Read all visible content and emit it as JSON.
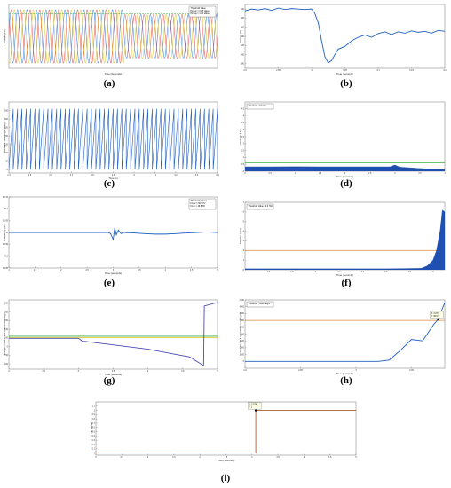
{
  "figure": {
    "background": "#ffffff"
  },
  "panels": [
    {
      "id": "a",
      "caption": "(a)",
      "box": "empty",
      "chart_data": {
        "type": "line",
        "xlabel": "Time (Seconds)",
        "ylabel": "Voltage (p.u.)",
        "x_ticks": [],
        "y_ticks": [],
        "legend": {
          "placement": "top-right",
          "lines": [
            "Threshold Value",
            "Pickup = 0.85 Value",
            "Pickup = 1.00 Value"
          ]
        },
        "series": [
          {
            "color": "#e8453c",
            "waveform": "sine",
            "phase_deg": 0
          },
          {
            "color": "#2f7bd9",
            "waveform": "sine",
            "phase_deg": 120
          },
          {
            "color": "#e0c020",
            "waveform": "sine",
            "phase_deg": 240
          }
        ],
        "reference_lines": [
          {
            "y": 0.85,
            "color": "#3cb040"
          }
        ]
      }
    },
    {
      "id": "b",
      "caption": "(b)",
      "box": "full",
      "chart_data": {
        "type": "line",
        "xlabel": "Time (seconds)",
        "ylabel": "Voltage (V)",
        "xlim": [
          2.9,
          3.2
        ],
        "ylim": [
          270,
          410
        ],
        "x_ticks": [
          "2.9",
          "2.95",
          "3",
          "3.05",
          "3.1",
          "3.15",
          "3.2"
        ],
        "y_ticks": [
          "280",
          "300",
          "320",
          "340",
          "360",
          "380",
          "400"
        ],
        "series": [
          {
            "color": "#1f5fbf",
            "x": [
              2.9,
              2.91,
              2.92,
              2.93,
              2.94,
              2.95,
              2.96,
              2.97,
              2.98,
              2.99,
              3.0,
              3.005,
              3.01,
              3.015,
              3.02,
              3.025,
              3.03,
              3.035,
              3.04,
              3.05,
              3.06,
              3.07,
              3.08,
              3.09,
              3.1,
              3.11,
              3.12,
              3.13,
              3.14,
              3.15,
              3.16,
              3.17,
              3.18,
              3.19,
              3.2
            ],
            "y": [
              396,
              400,
              398,
              401,
              397,
              402,
              399,
              401,
              400,
              399,
              400,
              390,
              370,
              330,
              295,
              282,
              287,
              300,
              312,
              318,
              330,
              338,
              343,
              338,
              346,
              350,
              344,
              350,
              347,
              352,
              349,
              351,
              347,
              353,
              351
            ]
          }
        ]
      }
    },
    {
      "id": "c",
      "caption": "(c)",
      "box": "full",
      "chart_data": {
        "type": "line",
        "xlabel": "Time (s)",
        "ylabel": "Voltage Phase Angle (Deg)",
        "xlim": [
          2.4,
          3.4
        ],
        "ylim": [
          -20,
          400
        ],
        "x_ticks": [
          "2.4",
          "2.5",
          "2.6",
          "2.7",
          "2.8",
          "2.9",
          "3",
          "3.1",
          "3.2",
          "3.3",
          "3.4"
        ],
        "y_ticks": [
          "0",
          "50",
          "100",
          "150",
          "200",
          "250",
          "300",
          "350"
        ],
        "series": [
          {
            "color": "#1f5fbf",
            "waveform": "sawtooth",
            "cycles": 48,
            "min": 0,
            "max": 360
          }
        ]
      }
    },
    {
      "id": "d",
      "caption": "(d)",
      "box": "full",
      "chart_data": {
        "type": "area",
        "xlabel": "Time (seconds)",
        "ylabel": "ROCOV (V/s)",
        "xlim": [
          0,
          4
        ],
        "ylim": [
          0,
          5
        ],
        "x_ticks": [
          "0",
          "0.5",
          "1",
          "1.5",
          "2",
          "2.5",
          "3",
          "3.5",
          "4"
        ],
        "y_ticks": [
          "0",
          "0.5",
          "1",
          "1.5",
          "2",
          "2.5",
          "3",
          "3.5",
          "4",
          "4.5"
        ],
        "legend": {
          "placement": "top-left",
          "lines": [
            "Threshold : 0.6 V/s"
          ]
        },
        "series": [
          {
            "color": "#1f4fb0",
            "x": [
              0,
              0.5,
              1,
              1.5,
              2,
              2.5,
              2.9,
              3.0,
              3.1,
              3.5,
              4
            ],
            "y": [
              0.32,
              0.32,
              0.33,
              0.32,
              0.32,
              0.32,
              0.32,
              0.45,
              0.3,
              0.2,
              0.12
            ]
          }
        ],
        "reference_lines": [
          {
            "y": 0.6,
            "color": "#3cb040"
          }
        ]
      }
    },
    {
      "id": "e",
      "caption": "(e)",
      "box": "full",
      "chart_data": {
        "type": "line",
        "xlabel": "Time (seconds)",
        "ylabel": "Frequency (Hz)",
        "xlim": [
          1,
          5
        ],
        "ylim": [
          49.85,
          50.15
        ],
        "x_ticks": [
          "1",
          "1.5",
          "2",
          "2.5",
          "3",
          "3.5",
          "4",
          "4.5",
          "5"
        ],
        "y_ticks": [
          "49.85",
          "49.9",
          "49.95",
          "50",
          "50.05",
          "50.1",
          "50.15"
        ],
        "legend": {
          "placement": "top-right",
          "lines": [
            "Threshold Values",
            "Fmax = 50.5 Hz",
            "Fmin = 49.5 Hz"
          ]
        },
        "series": [
          {
            "color": "#1f5fbf",
            "x": [
              1,
              2.9,
              2.95,
              3.0,
              3.03,
              3.06,
              3.1,
              3.15,
              3.2,
              3.4,
              3.6,
              3.8,
              4.0,
              4.2,
              4.4,
              4.6,
              4.8,
              5.0
            ],
            "y": [
              50,
              50,
              49.995,
              49.97,
              50.02,
              49.99,
              50.01,
              49.995,
              50,
              49.998,
              49.995,
              49.993,
              49.993,
              49.995,
              49.998,
              50,
              50.002,
              50
            ]
          }
        ]
      }
    },
    {
      "id": "f",
      "caption": "(f)",
      "box": "full",
      "chart_data": {
        "type": "area",
        "xlabel": "Time (seconds)",
        "ylabel": "ROCOF (Hz/s)",
        "xlim": [
          1.4,
          3.1
        ],
        "ylim": [
          0,
          7
        ],
        "x_ticks": [
          "1.6",
          "1.8",
          "2",
          "2.2",
          "2.4",
          "2.6",
          "2.8",
          "3"
        ],
        "y_ticks": [
          "0",
          "1",
          "2",
          "3",
          "4",
          "5",
          "6",
          "7"
        ],
        "legend": {
          "placement": "top-left",
          "lines": [
            "Threshold Value : 2.0 Hz/s"
          ]
        },
        "series": [
          {
            "color": "#1f4fb0",
            "x": [
              1.4,
              2.0,
              2.6,
              2.9,
              2.95,
              3.0,
              3.03,
              3.06,
              3.08,
              3.1
            ],
            "y": [
              0.1,
              0.1,
              0.1,
              0.15,
              0.4,
              1.0,
              2.0,
              4.0,
              6.2,
              6.0
            ]
          }
        ],
        "reference_lines": [
          {
            "y": 2.0,
            "color": "#d9893a"
          }
        ]
      }
    },
    {
      "id": "g",
      "caption": "(g)",
      "box": "full",
      "chart_data": {
        "type": "line",
        "xlabel": "Time (seconds)",
        "ylabel": "Voltage Phase Angle Difference (Deg)",
        "xlim": [
          2,
          5
        ],
        "ylim": [
          -130,
          270
        ],
        "x_ticks": [
          "2",
          "2.5",
          "3",
          "3.5",
          "4",
          "4.5",
          "5"
        ],
        "y_ticks": [
          "-100",
          "-50",
          "0",
          "50",
          "100",
          "150",
          "200",
          "250"
        ],
        "series": [
          {
            "color": "#4a4ab8",
            "x": [
              2,
              3.0,
              3.03,
              3.06,
              3.1,
              3.5,
              4.0,
              4.4,
              4.6,
              4.8,
              4.81,
              5.0
            ],
            "y": [
              48,
              48,
              40,
              30,
              30,
              10,
              -15,
              -45,
              -60,
              -110,
              235,
              255
            ]
          }
        ],
        "reference_lines": [
          {
            "y": 60,
            "color": "#3cb040"
          },
          {
            "y": 52,
            "color": "#e0c020"
          }
        ]
      }
    },
    {
      "id": "h",
      "caption": "(h)",
      "box": "full",
      "chart_data": {
        "type": "line",
        "xlabel": "Time (seconds)",
        "ylabel": "Rate of Phase Angle Difference (deg/s)",
        "xlim": [
          2.9,
          3.08
        ],
        "ylim": [
          -500,
          4500
        ],
        "x_ticks": [
          "2.9",
          "2.95",
          "3",
          "3.05"
        ],
        "y_ticks": [
          "0",
          "500",
          "1000",
          "1500",
          "2000",
          "2500",
          "3000",
          "3500",
          "4000",
          "4500"
        ],
        "legend": {
          "placement": "top-left",
          "lines": [
            "Threshold : 3000 deg/s"
          ]
        },
        "annotations": [
          "X: 3.074",
          "Y: 3072"
        ],
        "series": [
          {
            "color": "#1f5fbf",
            "x": [
              2.9,
              3.0,
              3.01,
              3.02,
              3.03,
              3.04,
              3.05,
              3.06,
              3.07,
              3.074,
              3.08
            ],
            "y": [
              0,
              0,
              0,
              0,
              100,
              800,
              1600,
              1500,
              2700,
              3072,
              4300
            ]
          }
        ],
        "reference_lines": [
          {
            "y": 3000,
            "color": "#d9893a"
          }
        ]
      }
    },
    {
      "id": "i",
      "caption": "(i)",
      "box": "full",
      "chart_data": {
        "type": "line",
        "xlabel": "Time (Seconds)",
        "ylabel": "Trip Signal",
        "xlim": [
          0,
          5
        ],
        "ylim": [
          -0.05,
          1.2
        ],
        "x_ticks": [
          "0",
          "0.5",
          "1",
          "1.5",
          "2",
          "2.5",
          "3",
          "3.5",
          "4",
          "4.5",
          "5"
        ],
        "y_ticks": [
          "0",
          "0.1",
          "0.2",
          "0.3",
          "0.4",
          "0.5",
          "0.6",
          "0.7",
          "0.8",
          "0.9",
          "1",
          "1.1"
        ],
        "annotations": [
          "X: 3.074",
          "Y: 1"
        ],
        "series": [
          {
            "color": "#3cb040",
            "x": [
              0,
              3.074,
              3.074,
              5
            ],
            "y": [
              0,
              0,
              1,
              1
            ]
          },
          {
            "color": "#e8453c",
            "x": [
              0,
              3.074,
              3.074,
              5
            ],
            "y": [
              0,
              0,
              1,
              1
            ]
          }
        ]
      }
    }
  ]
}
